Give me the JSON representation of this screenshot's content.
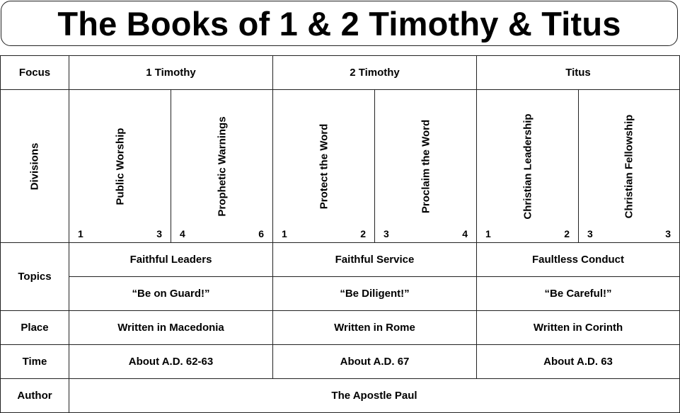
{
  "title": "The Books of 1 & 2 Timothy & Titus",
  "rows": {
    "focus": {
      "label": "Focus",
      "books": [
        "1 Timothy",
        "2 Timothy",
        "Titus"
      ]
    },
    "divisions": {
      "label": "Divisions",
      "items": [
        {
          "text": "Public Worship",
          "start": "1",
          "end": "3"
        },
        {
          "text": "Prophetic Warnings",
          "start": "4",
          "end": "6"
        },
        {
          "text": "Protect the Word",
          "start": "1",
          "end": "2"
        },
        {
          "text": "Proclaim the Word",
          "start": "3",
          "end": "4"
        },
        {
          "text": "Christian Leadership",
          "start": "1",
          "end": "2"
        },
        {
          "text": "Christian Fellowship",
          "start": "3",
          "end": "3"
        }
      ]
    },
    "topics": {
      "label": "Topics",
      "row1": [
        "Faithful Leaders",
        "Faithful Service",
        "Faultless Conduct"
      ],
      "row2": [
        "“Be on Guard!”",
        "“Be Diligent!”",
        "“Be Careful!”"
      ]
    },
    "place": {
      "label": "Place",
      "values": [
        "Written in Macedonia",
        "Written in Rome",
        "Written in Corinth"
      ]
    },
    "time": {
      "label": "Time",
      "values": [
        "About A.D. 62-63",
        "About A.D. 67",
        "About A.D. 63"
      ]
    },
    "author": {
      "label": "Author",
      "value": "The Apostle Paul"
    }
  }
}
